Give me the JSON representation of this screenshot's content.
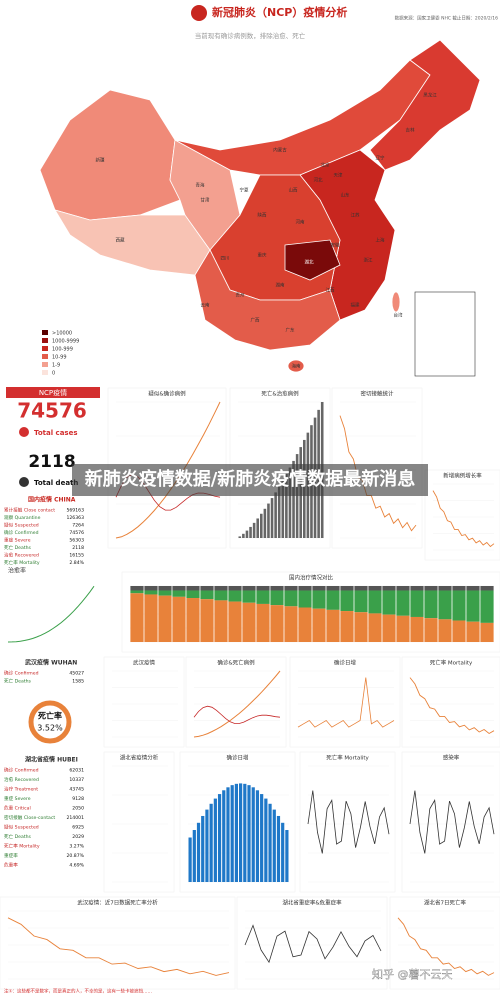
{
  "header": {
    "title": "新冠肺炎（NCP）疫情分析",
    "source": "数据来源：国家卫健委 NHC  截止日期：2020/2/16",
    "subtitle": "当前现有确诊病例数，排除治愈、死亡"
  },
  "map": {
    "legend": [
      ">10000",
      "1000-9999",
      "100-999",
      "10-99",
      "1-9",
      "0"
    ],
    "provinces": [
      "湖北",
      "广东",
      "河南",
      "浙江",
      "湖南",
      "安徽",
      "江西",
      "江苏",
      "山东",
      "重庆",
      "四川",
      "黑龙江",
      "北京",
      "上海",
      "福建",
      "河北",
      "广西",
      "陕西",
      "云南",
      "海南",
      "贵州",
      "山西",
      "辽宁",
      "吉林",
      "内蒙古",
      "新疆",
      "甘肃",
      "宁夏",
      "青海",
      "西藏",
      "台湾",
      "天津"
    ]
  },
  "summary": {
    "badge": "NCP疫情",
    "total": "74576",
    "total_label": "Total cases",
    "deaths": "2118",
    "deaths_label": "Total death"
  },
  "china": {
    "title": "国内疫情 CHINA",
    "rows": [
      [
        "累计接触 Close contact",
        "569163"
      ],
      [
        "观察 Quarantine",
        "126363"
      ],
      [
        "疑似 Suspected",
        "7264"
      ],
      [
        "确诊 Confirmed",
        "74576"
      ],
      [
        "重症 Severe",
        "56303"
      ],
      [
        "死亡 Deaths",
        "2118"
      ],
      [
        "治愈 Recovered",
        "16155"
      ],
      [
        "死亡率 Mortality",
        "2.84%"
      ]
    ]
  },
  "cure": {
    "title": "治愈率"
  },
  "wuhan": {
    "title": "武汉疫情 WUHAN",
    "rows": [
      [
        "确诊 Confirmed",
        "45027"
      ],
      [
        "死亡 Deaths",
        "1585"
      ]
    ],
    "ring_title": "死亡率",
    "ring_value": "3.52%"
  },
  "hubei": {
    "title": "湖北省疫情 HUBEI",
    "rows": [
      [
        "确诊 Confirmed",
        "62031"
      ],
      [
        "治愈 Recovered",
        "10337"
      ],
      [
        "治疗 Treatment",
        "43745"
      ],
      [
        "重症 Severe",
        "9128"
      ],
      [
        "危重 Critical",
        "2050"
      ],
      [
        "密切接触 Close-contact",
        "214001"
      ],
      [
        "疑似 Suspected",
        "6925"
      ],
      [
        "死亡 Deaths",
        "2029"
      ],
      [
        "死亡率 Mortality",
        "3.27%"
      ],
      [
        "重症率",
        "20.87%"
      ],
      [
        "危重率",
        "4.69%"
      ]
    ]
  },
  "charts": [
    "疑似&确诊病例",
    "死亡&治愈病例",
    "密切接触统计",
    "新增病例增长率",
    "国内治疗情况对比",
    "武汉疫情",
    "确诊&死亡病例",
    "确诊日增",
    "死亡率 Mortality",
    "湖北省疫情分析",
    "确诊日增",
    "死亡率 Mortality",
    "感染率",
    "武汉疫情：近7日数据死亡率分析",
    "湖北省重症率&危重症率",
    "湖北省7日死亡率"
  ],
  "banner": "新肺炎疫情数据/新肺炎疫情数据最新消息",
  "footer": "注①：这些都不是数字，而是真正的人，不幸的是，这有一些卡被遮挡……",
  "watermark": "知乎 @薯不云天"
}
